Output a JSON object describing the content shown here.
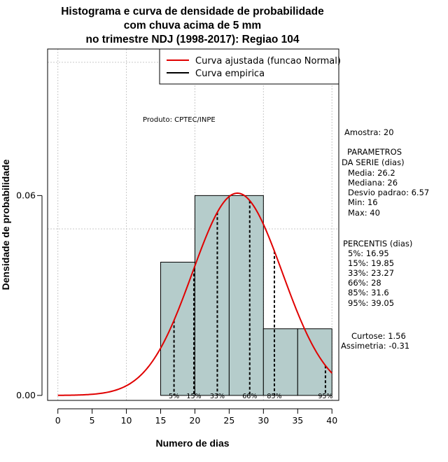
{
  "chart_data": {
    "type": "histogram",
    "title_lines": [
      "Histograma e curva de densidade de probabilidade",
      "com chuva acima de 5 mm",
      "no trimestre NDJ (1998-2017): Regiao 104"
    ],
    "xlabel": "Numero de dias",
    "ylabel": "Densidade de probabilidade",
    "xlim": [
      -1.5,
      41
    ],
    "ylim": [
      -0.0015,
      0.104
    ],
    "x_ticks": [
      0,
      5,
      10,
      15,
      20,
      25,
      30,
      35,
      40
    ],
    "x_tick_labels": [
      "0",
      "5",
      "10",
      "15",
      "20",
      "25",
      "30",
      "35",
      "40"
    ],
    "y_ticks": [
      0.0,
      0.06
    ],
    "y_tick_labels": [
      "0.00",
      "0.06"
    ],
    "grid": true,
    "grid_lines_x": [
      0,
      10,
      20,
      30,
      40
    ],
    "grid_lines_y": [
      0.1,
      0.05
    ],
    "bins": [
      {
        "x0": 15,
        "x1": 20,
        "density": 0.04
      },
      {
        "x0": 20,
        "x1": 25,
        "density": 0.06
      },
      {
        "x0": 25,
        "x1": 30,
        "density": 0.06
      },
      {
        "x0": 30,
        "x1": 35,
        "density": 0.02
      },
      {
        "x0": 35,
        "x1": 40,
        "density": 0.02
      }
    ],
    "bar_color": "#b5cccb",
    "normal_curve": {
      "mean": 26.2,
      "sd": 6.57,
      "x_from": 0,
      "x_to": 40,
      "color": "#e00000"
    },
    "percentiles": [
      {
        "label": "5%",
        "value": 16.95
      },
      {
        "label": "15%",
        "value": 19.85
      },
      {
        "label": "33%",
        "value": 23.27
      },
      {
        "label": "66%",
        "value": 28
      },
      {
        "label": "85%",
        "value": 31.6
      },
      {
        "label": "95%",
        "value": 39.05
      }
    ],
    "legend": {
      "position": "top-right",
      "entries": [
        {
          "label": "Curva ajustada (funcao Normal)",
          "color": "#e00000"
        },
        {
          "label": "Curva empirica",
          "color": "#000000"
        }
      ]
    },
    "annotation": "Produto: CPTEC/INPE",
    "side_panel": {
      "amostra": "Amostra: 20",
      "params_title": [
        "PARAMETROS",
        "DA SERIE (dias)"
      ],
      "params": [
        "Media: 26.2",
        "Mediana: 26",
        "Desvio padrao: 6.57",
        "Min: 16",
        "Max: 40"
      ],
      "percentis_title": "PERCENTIS (dias)",
      "percentis": [
        "5%: 16.95",
        "15%: 19.85",
        "33%: 23.27",
        "66%: 28",
        "85%: 31.6",
        "95%: 39.05"
      ],
      "shape": [
        "Curtose: 1.56",
        "Assimetria: -0.31"
      ]
    }
  }
}
